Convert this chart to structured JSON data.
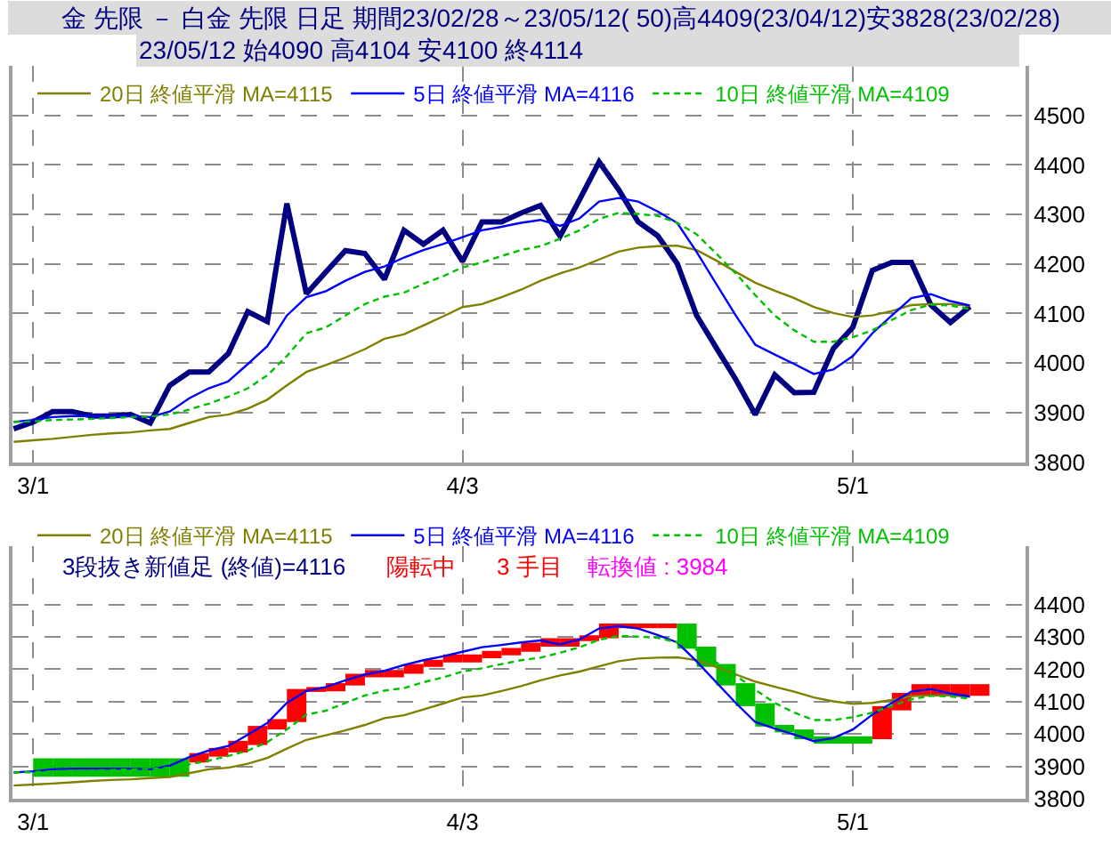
{
  "chart_data": [
    {
      "type": "line",
      "title": "金 先限 － 白金 先限 日足 期間23/02/28～23/05/12( 50)高4409(23/04/12)安3828(23/02/28)",
      "subtitle": "23/05/12 始4090 高4104 安4100 終4114",
      "categories": [
        null,
        "3/1",
        null,
        null,
        null,
        null,
        null,
        null,
        null,
        null,
        null,
        null,
        null,
        null,
        null,
        null,
        null,
        null,
        null,
        null,
        null,
        null,
        null,
        "4/3",
        null,
        null,
        null,
        null,
        null,
        null,
        null,
        null,
        null,
        null,
        null,
        null,
        null,
        null,
        null,
        null,
        null,
        null,
        null,
        "5/1",
        null,
        null,
        null,
        null,
        null,
        null
      ],
      "series": [
        {
          "color": "#000080",
          "values": [
            3867,
            3881,
            3902,
            3902,
            3893,
            3893,
            3896,
            3879,
            3955,
            3982,
            3982,
            4019,
            4104,
            4084,
            4322,
            4140,
            4184,
            4227,
            4221,
            4169,
            4268,
            4240,
            4268,
            4205,
            4285,
            4285,
            4303,
            4318,
            4256,
            4330,
            4406,
            4350,
            4285,
            4257,
            4201,
            4096,
            4031,
            3967,
            3896,
            3976,
            3940,
            3941,
            4029,
            4072,
            4187,
            4203,
            4203,
            4117,
            4082,
            4114
          ]
        },
        {
          "name": "20日 終値平滑 MA=4115",
          "color": "#808000",
          "values": [
            3841,
            3844,
            3847,
            3851,
            3855,
            3858,
            3860,
            3864,
            3867,
            3879,
            3891,
            3896,
            3908,
            3926,
            3955,
            3982,
            3996,
            4011,
            4028,
            4049,
            4058,
            4076,
            4094,
            4113,
            4119,
            4133,
            4148,
            4166,
            4181,
            4193,
            4209,
            4225,
            4233,
            4236,
            4237,
            4228,
            4207,
            4184,
            4162,
            4146,
            4131,
            4113,
            4101,
            4093,
            4096,
            4105,
            4117,
            4119,
            4119,
            4115
          ]
        },
        {
          "name": "5日 終値平滑 MA=4116",
          "color": "#0000ff",
          "values": [
            3881,
            3885,
            3891,
            3893,
            3893,
            3893,
            3893,
            3891,
            3902,
            3929,
            3949,
            3963,
            3998,
            4034,
            4096,
            4133,
            4145,
            4166,
            4184,
            4195,
            4213,
            4228,
            4240,
            4254,
            4268,
            4275,
            4283,
            4289,
            4277,
            4292,
            4326,
            4333,
            4326,
            4306,
            4283,
            4224,
            4160,
            4096,
            4037,
            4017,
            3998,
            3978,
            3987,
            4014,
            4060,
            4096,
            4131,
            4139,
            4125,
            4116
          ]
        },
        {
          "name": "10日 終値平滑 MA=4109",
          "color": "#00c000",
          "line_style": "dashed",
          "values": [
            3881,
            3882,
            3885,
            3886,
            3887,
            3889,
            3891,
            3892,
            3896,
            3906,
            3918,
            3932,
            3949,
            3975,
            4014,
            4060,
            4072,
            4096,
            4119,
            4134,
            4142,
            4160,
            4175,
            4193,
            4203,
            4216,
            4228,
            4236,
            4251,
            4268,
            4291,
            4303,
            4301,
            4297,
            4283,
            4260,
            4221,
            4181,
            4137,
            4096,
            4066,
            4043,
            4043,
            4052,
            4066,
            4087,
            4107,
            4118,
            4116,
            4109
          ]
        }
      ],
      "ylim": [
        3800,
        4600
      ],
      "yticks": [
        3800,
        3900,
        4000,
        4100,
        4200,
        4300,
        4400,
        4500
      ],
      "grid": true,
      "legend": "top left"
    },
    {
      "type": "bar",
      "categories": [
        null,
        "3/1",
        null,
        null,
        null,
        null,
        null,
        null,
        null,
        null,
        null,
        null,
        null,
        null,
        null,
        null,
        null,
        null,
        null,
        null,
        null,
        null,
        null,
        "4/3",
        null,
        null,
        null,
        null,
        null,
        null,
        null,
        null,
        null,
        null,
        null,
        null,
        null,
        null,
        null,
        null,
        null,
        null,
        null,
        "5/1",
        null,
        null,
        null,
        null,
        null,
        null
      ],
      "series": [
        {
          "type": "bar",
          "values": [
            null,
            -57,
            -57,
            -57,
            -57,
            -57,
            -57,
            -57,
            -57,
            29,
            27,
            36,
            59,
            32,
            102,
            15,
            25,
            36,
            23,
            23,
            30,
            22,
            25,
            25,
            23,
            23,
            28,
            26,
            26,
            18,
            45,
            9,
            9,
            9,
            -77,
            -63,
            -66,
            -71,
            -72,
            -23,
            -30,
            -23,
            -23,
            -23,
            102,
            54,
            36,
            36,
            36,
            36
          ],
          "base": [
            null,
            3925,
            3925,
            3925,
            3925,
            3925,
            3925,
            3925,
            3925,
            3912,
            3930,
            3943,
            3966,
            4014,
            4037,
            4130,
            4132,
            4150,
            4175,
            4175,
            4186,
            4207,
            4221,
            4221,
            4234,
            4243,
            4254,
            4270,
            4270,
            4287,
            4296,
            4332,
            4332,
            4332,
            4341,
            4270,
            4216,
            4157,
            4095,
            4028,
            4014,
            3993,
            3993,
            3993,
            3984,
            4073,
            4118,
            4118,
            4118,
            4118
          ],
          "colors": [
            null,
            "#00c000",
            "#00c000",
            "#00c000",
            "#00c000",
            "#00c000",
            "#00c000",
            "#00c000",
            "#00c000",
            "#ff0000",
            "#ff0000",
            "#ff0000",
            "#ff0000",
            "#ff0000",
            "#ff0000",
            "#ff0000",
            "#ff0000",
            "#ff0000",
            "#ff0000",
            "#ff0000",
            "#ff0000",
            "#ff0000",
            "#ff0000",
            "#ff0000",
            "#ff0000",
            "#ff0000",
            "#ff0000",
            "#ff0000",
            "#ff0000",
            "#ff0000",
            "#ff0000",
            "#ff0000",
            "#ff0000",
            "#ff0000",
            "#00c000",
            "#00c000",
            "#00c000",
            "#00c000",
            "#00c000",
            "#00c000",
            "#00c000",
            "#00c000",
            "#00c000",
            "#00c000",
            "#ff0000",
            "#ff0000",
            "#ff0000",
            "#ff0000",
            "#ff0000",
            "#ff0000"
          ]
        },
        {
          "type": "line",
          "name": "20日 終値平滑 MA=4115",
          "color": "#808000",
          "values": [
            3841,
            3844,
            3847,
            3851,
            3855,
            3858,
            3860,
            3864,
            3867,
            3879,
            3891,
            3896,
            3908,
            3926,
            3955,
            3982,
            3996,
            4011,
            4028,
            4049,
            4058,
            4076,
            4094,
            4113,
            4119,
            4133,
            4148,
            4166,
            4181,
            4193,
            4209,
            4225,
            4233,
            4236,
            4237,
            4228,
            4207,
            4184,
            4162,
            4146,
            4131,
            4113,
            4101,
            4093,
            4096,
            4105,
            4117,
            4119,
            4119,
            4115
          ]
        },
        {
          "type": "line",
          "name": "5日 終値平滑 MA=4116",
          "color": "#0000ff",
          "values": [
            3881,
            3885,
            3891,
            3893,
            3893,
            3893,
            3893,
            3891,
            3902,
            3929,
            3949,
            3963,
            3998,
            4034,
            4096,
            4133,
            4145,
            4166,
            4184,
            4195,
            4213,
            4228,
            4240,
            4254,
            4268,
            4275,
            4283,
            4289,
            4277,
            4292,
            4326,
            4333,
            4326,
            4306,
            4283,
            4224,
            4160,
            4096,
            4037,
            4017,
            3998,
            3978,
            3987,
            4014,
            4060,
            4096,
            4131,
            4139,
            4125,
            4116
          ]
        },
        {
          "type": "line",
          "name": "10日 終値平滑 MA=4109",
          "color": "#00c000",
          "line_style": "dashed",
          "values": [
            3881,
            3882,
            3885,
            3886,
            3887,
            3889,
            3891,
            3892,
            3896,
            3906,
            3918,
            3932,
            3949,
            3975,
            4014,
            4060,
            4072,
            4096,
            4119,
            4134,
            4142,
            4160,
            4175,
            4193,
            4203,
            4216,
            4228,
            4236,
            4251,
            4268,
            4291,
            4303,
            4301,
            4297,
            4283,
            4260,
            4221,
            4181,
            4137,
            4096,
            4066,
            4043,
            4043,
            4052,
            4066,
            4087,
            4107,
            4118,
            4116,
            4109
          ]
        }
      ],
      "annotations": [
        "3段抜き新値足 (終値)=4116",
        "陽転中",
        "3 手目",
        "転換値 : 3984"
      ],
      "ylim": [
        3800,
        4580
      ],
      "yticks": [
        3800,
        3900,
        4000,
        4100,
        4200,
        4300,
        4400
      ],
      "grid": true,
      "legend": "top left"
    }
  ]
}
